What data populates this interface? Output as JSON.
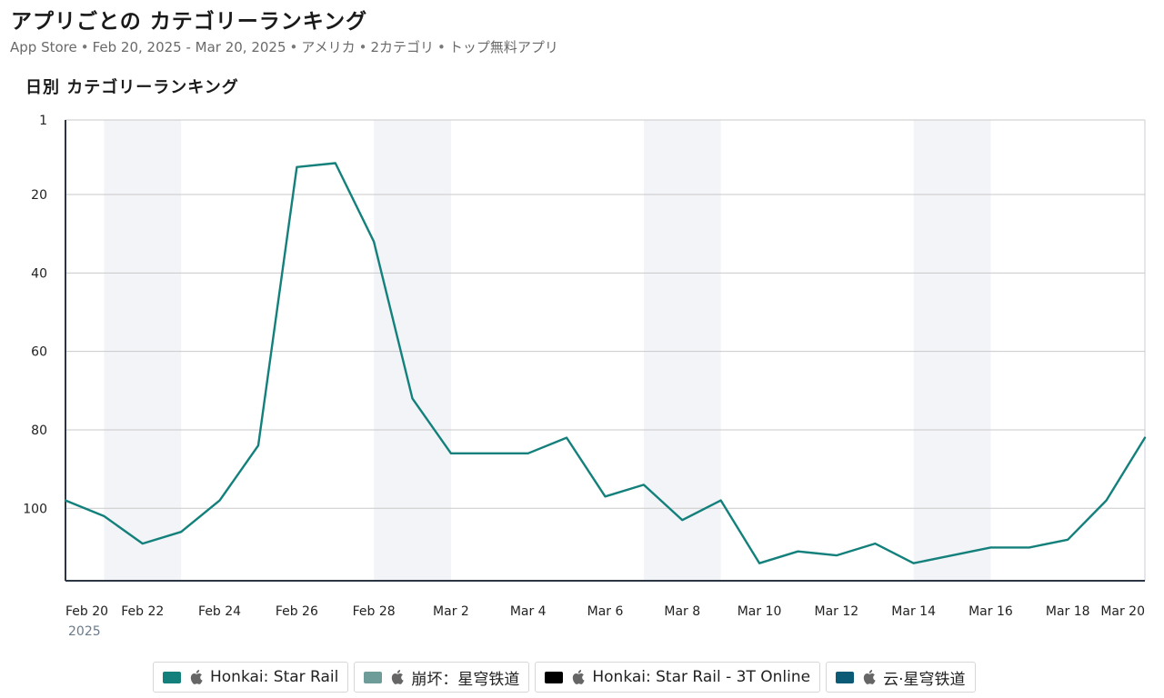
{
  "header": {
    "title": "アプリごとの カテゴリーランキング",
    "subtitle_parts": [
      "App Store",
      "Feb 20, 2025 - Mar 20, 2025",
      "アメリカ",
      "2カテゴリ",
      "トップ無料アプリ"
    ],
    "separator": "•"
  },
  "section_title": "日別 カテゴリーランキング",
  "colors": {
    "line": "#13807c",
    "weekend_band": "#f2f4f7",
    "grid": "#c9c9c9",
    "axis": "#2c3544"
  },
  "chart_data": {
    "type": "line",
    "title": "日別 カテゴリーランキング",
    "y_inverted": true,
    "ylim": [
      1,
      120
    ],
    "y_ticks": [
      1,
      20,
      40,
      60,
      80,
      100
    ],
    "x_tick_labels": [
      "Feb 20",
      "Feb 22",
      "Feb 24",
      "Feb 26",
      "Feb 28",
      "Mar 2",
      "Mar 4",
      "Mar 6",
      "Mar 8",
      "Mar 10",
      "Mar 12",
      "Mar 14",
      "Mar 16",
      "Mar 18",
      "Mar 20"
    ],
    "x_year_label": "2025",
    "x": [
      "Feb 20",
      "Feb 21",
      "Feb 22",
      "Feb 23",
      "Feb 24",
      "Feb 25",
      "Feb 26",
      "Feb 27",
      "Feb 28",
      "Mar 1",
      "Mar 2",
      "Mar 3",
      "Mar 4",
      "Mar 5",
      "Mar 6",
      "Mar 7",
      "Mar 8",
      "Mar 9",
      "Mar 10",
      "Mar 11",
      "Mar 12",
      "Mar 13",
      "Mar 14",
      "Mar 15",
      "Mar 16",
      "Mar 17",
      "Mar 18",
      "Mar 19",
      "Mar 20"
    ],
    "weekend_bands": [
      [
        "Feb 21",
        "Feb 23"
      ],
      [
        "Feb 28",
        "Mar 2"
      ],
      [
        "Mar 7",
        "Mar 9"
      ],
      [
        "Mar 14",
        "Mar 16"
      ]
    ],
    "series": [
      {
        "name": "Honkai: Star Rail",
        "color": "#13807c",
        "values": [
          98,
          102,
          109,
          106,
          98,
          84,
          13,
          12,
          32,
          72,
          86,
          86,
          86,
          82,
          97,
          94,
          103,
          98,
          114,
          111,
          112,
          109,
          114,
          112,
          110,
          110,
          108,
          98,
          82
        ]
      }
    ],
    "legend": [
      {
        "label": "Honkai: Star Rail",
        "color": "#13807c",
        "icon": "apple-icon"
      },
      {
        "label": "崩坏：星穹铁道",
        "color": "#6e9c98",
        "icon": "apple-icon"
      },
      {
        "label": "Honkai: Star Rail - 3T Online",
        "color": "#000000",
        "icon": "apple-icon"
      },
      {
        "label": "云·星穹铁道",
        "color": "#0b5a76",
        "icon": "apple-icon"
      }
    ],
    "legend_placement": "bottom",
    "grid": true
  }
}
